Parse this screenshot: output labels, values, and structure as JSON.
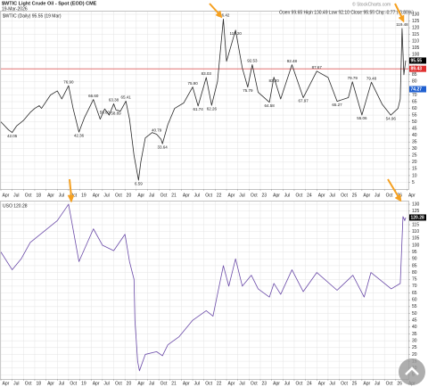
{
  "chart_data": [
    {
      "type": "line",
      "title": "$WTIC Light Crude Oil - Spot (EOD) CME",
      "subtitle": "19-Mar-2026",
      "quote": "Open 99.65 High 100.49 Low 92.10 Close 95.55 Chg -0.77 (-0.80%)",
      "source": "© StockCharts.com",
      "legend_label": "$WTIC (Daily) 95.55 (19 Mar)",
      "series": [
        {
          "name": "$WTIC",
          "color": "#2a2a2a",
          "x": [
            2017.25,
            2017.42,
            2017.5,
            2017.6,
            2017.75,
            2017.9,
            2018.0,
            2018.1,
            2018.15,
            2018.35,
            2018.5,
            2018.6,
            2018.75,
            2018.85,
            2018.98,
            2019.1,
            2019.3,
            2019.45,
            2019.55,
            2019.65,
            2019.75,
            2019.8,
            2019.9,
            2020.02,
            2020.1,
            2020.2,
            2020.3,
            2020.35,
            2020.45,
            2020.6,
            2020.7,
            2020.8,
            2020.83,
            2020.95,
            2021.1,
            2021.3,
            2021.5,
            2021.62,
            2021.8,
            2021.92,
            2022.05,
            2022.18,
            2022.25,
            2022.45,
            2022.6,
            2022.72,
            2022.82,
            2022.95,
            2023.2,
            2023.3,
            2023.45,
            2023.7,
            2023.95,
            2024.25,
            2024.5,
            2024.7,
            2024.95,
            2025.04,
            2025.25,
            2025.46,
            2025.7,
            2025.89,
            2026.05,
            2026.1,
            2026.14,
            2026.18,
            2026.22
          ],
          "values": [
            50,
            44,
            42.05,
            47,
            51,
            57,
            60,
            62,
            60,
            70,
            73,
            67,
            76.9,
            60,
            42.36,
            53,
            66.6,
            52,
            59.6,
            55,
            63.38,
            58.89,
            58,
            65.41,
            52,
            25,
            6.59,
            20,
            38,
            42,
            40.79,
            37,
            33.64,
            48,
            60,
            64,
            75.9,
            61.74,
            83.03,
            62.26,
            80,
            126.42,
            95,
            118.2,
            90,
            75.79,
            92.53,
            72,
            64.58,
            83.2,
            67,
            92.48,
            67.97,
            87.67,
            83,
            65.27,
            68,
            79.79,
            55.06,
            79.48,
            63,
            54.96,
            60,
            67,
            119.48,
            85,
            95.55
          ]
        }
      ],
      "annotations": {
        "x": [
          2017.5,
          2018.75,
          2018.98,
          2019.3,
          2019.55,
          2019.75,
          2019.8,
          2020.02,
          2020.3,
          2020.7,
          2020.83,
          2021.5,
          2021.62,
          2021.8,
          2021.92,
          2022.18,
          2022.45,
          2022.72,
          2022.82,
          2023.2,
          2023.3,
          2023.7,
          2023.95,
          2024.25,
          2024.7,
          2025.04,
          2025.25,
          2025.46,
          2025.89,
          2026.14
        ],
        "values": [
          42.05,
          76.9,
          42.36,
          66.6,
          59.6,
          63.38,
          58.89,
          65.41,
          6.59,
          40.79,
          33.64,
          75.9,
          61.74,
          83.03,
          62.26,
          126.42,
          118.2,
          75.79,
          92.53,
          64.58,
          83.2,
          92.48,
          67.97,
          87.67,
          65.27,
          79.79,
          55.06,
          79.48,
          54.96,
          119.48
        ],
        "value_labels": [
          "42.05",
          "76.90",
          "42.36",
          "66.60",
          "59.60",
          "63.38",
          "58.89",
          "65.41",
          "6.59",
          "40.79",
          "33.64",
          "75.90",
          "61.74",
          "83.03",
          "62.26",
          "126.42",
          "118.20",
          "75.79",
          "92.53",
          "64.58",
          "83.20",
          "92.48",
          "67.97",
          "87.67",
          "65.27",
          "79.79",
          "55.06",
          "79.48",
          "54.96",
          "119.48"
        ]
      },
      "reference_line": {
        "value": 89.43,
        "color": "#e03030"
      },
      "price_markers": [
        {
          "value": 95.55,
          "color": "#000000"
        },
        {
          "value": 89.43,
          "color": "#e03030"
        },
        {
          "value": 74.27,
          "color": "#2060d0"
        }
      ],
      "xlim": [
        2017.25,
        2026.28
      ],
      "xticks": [
        {
          "value": 2017.25,
          "label": "Apr"
        },
        {
          "value": 2017.5,
          "label": "Jul"
        },
        {
          "value": 2017.75,
          "label": "Oct"
        },
        {
          "value": 2018,
          "label": "18"
        },
        {
          "value": 2018.25,
          "label": "Apr"
        },
        {
          "value": 2018.5,
          "label": "Jul"
        },
        {
          "value": 2018.75,
          "label": "Oct"
        },
        {
          "value": 2019,
          "label": "19"
        },
        {
          "value": 2019.25,
          "label": "Apr"
        },
        {
          "value": 2019.5,
          "label": "Jul"
        },
        {
          "value": 2019.75,
          "label": "Oct"
        },
        {
          "value": 2020,
          "label": "20"
        },
        {
          "value": 2020.25,
          "label": "Apr"
        },
        {
          "value": 2020.5,
          "label": "Jul"
        },
        {
          "value": 2020.75,
          "label": "Oct"
        },
        {
          "value": 2021,
          "label": "21"
        },
        {
          "value": 2021.25,
          "label": "Apr"
        },
        {
          "value": 2021.5,
          "label": "Jul"
        },
        {
          "value": 2021.75,
          "label": "Oct"
        },
        {
          "value": 2022,
          "label": "22"
        },
        {
          "value": 2022.25,
          "label": "Apr"
        },
        {
          "value": 2022.5,
          "label": "Jul"
        },
        {
          "value": 2022.75,
          "label": "Oct"
        },
        {
          "value": 2023,
          "label": "23"
        },
        {
          "value": 2023.25,
          "label": "Apr"
        },
        {
          "value": 2023.5,
          "label": "Jul"
        },
        {
          "value": 2023.75,
          "label": "Oct"
        },
        {
          "value": 2024,
          "label": "24"
        },
        {
          "value": 2024.25,
          "label": "Apr"
        },
        {
          "value": 2024.5,
          "label": "Jul"
        },
        {
          "value": 2024.75,
          "label": "Oct"
        },
        {
          "value": 2025,
          "label": "25"
        },
        {
          "value": 2025.25,
          "label": "Apr"
        },
        {
          "value": 2025.5,
          "label": "Jul"
        },
        {
          "value": 2025.75,
          "label": "Oct"
        },
        {
          "value": 2026,
          "label": "26"
        },
        {
          "value": 2026.25,
          "label": "Apr"
        }
      ],
      "ylim": [
        0,
        132
      ],
      "yticks": [
        5,
        10,
        15,
        20,
        25,
        30,
        35,
        40,
        45,
        50,
        55,
        60,
        65,
        70,
        75,
        80,
        85,
        90,
        95,
        100,
        105,
        110,
        115,
        120,
        125,
        130
      ],
      "grid": true
    },
    {
      "type": "line",
      "legend_label": "USO 120.28",
      "series": [
        {
          "name": "USO",
          "color": "#6a4aa8",
          "x": [
            2017.25,
            2017.5,
            2017.7,
            2017.9,
            2018.2,
            2018.5,
            2018.75,
            2018.98,
            2019.3,
            2019.5,
            2019.75,
            2020.0,
            2020.1,
            2020.2,
            2020.22,
            2020.28,
            2020.32,
            2020.45,
            2020.7,
            2020.83,
            2020.95,
            2021.2,
            2021.5,
            2021.8,
            2021.95,
            2022.18,
            2022.3,
            2022.45,
            2022.6,
            2022.8,
            2022.95,
            2023.2,
            2023.3,
            2023.45,
            2023.7,
            2023.95,
            2024.25,
            2024.7,
            2025.05,
            2025.3,
            2025.45,
            2025.9,
            2026.1,
            2026.16,
            2026.2,
            2026.22
          ],
          "values": [
            95,
            82,
            90,
            102,
            110,
            118,
            130,
            88,
            112,
            100,
            96,
            108,
            88,
            75,
            45,
            15,
            8,
            20,
            22,
            19,
            27,
            33,
            45,
            52,
            48,
            85,
            70,
            90,
            70,
            78,
            68,
            62,
            72,
            64,
            82,
            66,
            80,
            67,
            78,
            62,
            80,
            68,
            72,
            121,
            118,
            120.28
          ]
        }
      ],
      "price_markers": [
        {
          "value": 120.28,
          "color": "#000000"
        }
      ],
      "xlim": [
        2017.25,
        2026.28
      ],
      "xticks": [
        {
          "value": 2017.25,
          "label": "Apr"
        },
        {
          "value": 2017.5,
          "label": "Jul"
        },
        {
          "value": 2017.75,
          "label": "Oct"
        },
        {
          "value": 2018,
          "label": "18"
        },
        {
          "value": 2018.25,
          "label": "Apr"
        },
        {
          "value": 2018.5,
          "label": "Jul"
        },
        {
          "value": 2018.75,
          "label": "Oct"
        },
        {
          "value": 2019,
          "label": "19"
        },
        {
          "value": 2019.25,
          "label": "Apr"
        },
        {
          "value": 2019.5,
          "label": "Jul"
        },
        {
          "value": 2019.75,
          "label": "Oct"
        },
        {
          "value": 2020,
          "label": "20"
        },
        {
          "value": 2020.25,
          "label": "Apr"
        },
        {
          "value": 2020.5,
          "label": "Jul"
        },
        {
          "value": 2020.75,
          "label": "Oct"
        },
        {
          "value": 2021,
          "label": "21"
        },
        {
          "value": 2021.25,
          "label": "Apr"
        },
        {
          "value": 2021.5,
          "label": "Jul"
        },
        {
          "value": 2021.75,
          "label": "Oct"
        },
        {
          "value": 2022,
          "label": "22"
        },
        {
          "value": 2022.25,
          "label": "Apr"
        },
        {
          "value": 2022.5,
          "label": "Jul"
        },
        {
          "value": 2022.75,
          "label": "Oct"
        },
        {
          "value": 2023,
          "label": "23"
        },
        {
          "value": 2023.25,
          "label": "Apr"
        },
        {
          "value": 2023.5,
          "label": "Jul"
        },
        {
          "value": 2023.75,
          "label": "Oct"
        },
        {
          "value": 2024,
          "label": "24"
        },
        {
          "value": 2024.25,
          "label": "Apr"
        },
        {
          "value": 2024.5,
          "label": "Jul"
        },
        {
          "value": 2024.75,
          "label": "Oct"
        },
        {
          "value": 2025,
          "label": "25"
        },
        {
          "value": 2025.25,
          "label": "Apr"
        },
        {
          "value": 2025.5,
          "label": "Jul"
        },
        {
          "value": 2025.75,
          "label": "Oct"
        },
        {
          "value": 2026,
          "label": "26"
        },
        {
          "value": 2026.25,
          "label": "Apr"
        }
      ],
      "ylim": [
        2,
        132
      ],
      "yticks": [
        5,
        10,
        15,
        20,
        25,
        30,
        35,
        40,
        45,
        50,
        55,
        60,
        65,
        70,
        75,
        80,
        85,
        90,
        95,
        100,
        105,
        110,
        115,
        120,
        125,
        130
      ],
      "grid": true
    }
  ]
}
